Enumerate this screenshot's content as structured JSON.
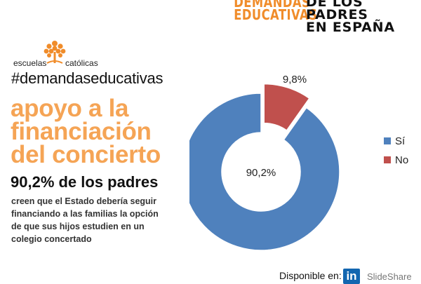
{
  "header": {
    "line1_left": "DEMANDAS",
    "line2_left": "EDUCATIVAS",
    "line1_right": "DE LOS PADRES",
    "line2_right": "EN ESPAÑA"
  },
  "logo": {
    "left_text": "escuelas",
    "right_text": "católicas",
    "icon": "tree-icon"
  },
  "hashtag": "#demandaseducativas",
  "headline": [
    "apoyo a la",
    "financiación",
    "del concierto"
  ],
  "stat": "90,2% de los padres",
  "body": [
    "creen que el Estado debería seguir",
    "financiando a las familias la opción",
    "de que sus hijos estudien en un",
    "colegio concertado"
  ],
  "chart_data": {
    "type": "pie",
    "donut": true,
    "categories": [
      "Sí",
      "No"
    ],
    "values": [
      90.2,
      9.8
    ],
    "labels": [
      "90,2%",
      "9,8%"
    ],
    "colors": [
      "#4f81bd",
      "#c0504d"
    ],
    "exploded": "No",
    "legend": "right"
  },
  "footer": {
    "available_label": "Disponible en:",
    "linkedin": "in",
    "slideshare": "SlideShare"
  },
  "colors": {
    "accent_orange": "#f5a455",
    "header_orange": "#f08c2a",
    "linkedin_blue": "#1266b0"
  }
}
